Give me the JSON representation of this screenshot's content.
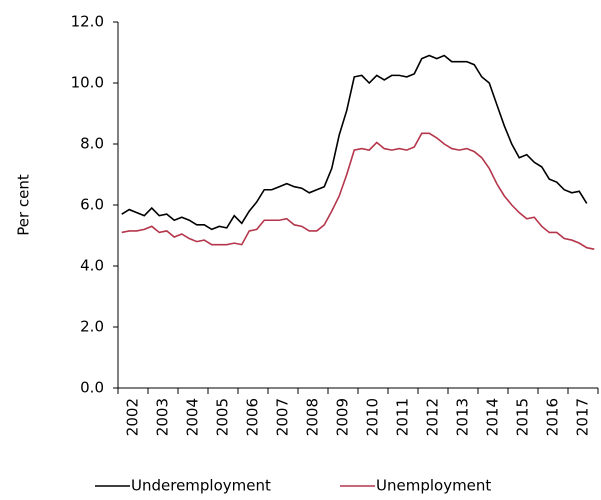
{
  "chart_data": {
    "type": "line",
    "y_label": "Per cent",
    "categories": [
      null,
      "2002",
      null,
      null,
      null,
      "2003",
      null,
      null,
      null,
      "2004",
      null,
      null,
      null,
      "2005",
      null,
      null,
      null,
      "2006",
      null,
      null,
      null,
      "2007",
      null,
      null,
      null,
      "2008",
      null,
      null,
      null,
      "2009",
      null,
      null,
      null,
      "2010",
      null,
      null,
      null,
      "2011",
      null,
      null,
      null,
      "2012",
      null,
      null,
      null,
      "2013",
      null,
      null,
      null,
      "2014",
      null,
      null,
      null,
      "2015",
      null,
      null,
      null,
      "2016",
      null,
      null,
      null,
      "2017",
      null,
      null
    ],
    "series": [
      {
        "name": "Underemployment",
        "color": "#000000",
        "values": [
          5.7,
          5.85,
          5.75,
          5.65,
          5.9,
          5.65,
          5.7,
          5.5,
          5.6,
          5.5,
          5.35,
          5.35,
          5.2,
          5.3,
          5.25,
          5.65,
          5.4,
          5.8,
          6.1,
          6.5,
          6.5,
          6.6,
          6.7,
          6.6,
          6.55,
          6.4,
          6.5,
          6.6,
          7.2,
          8.3,
          9.1,
          10.2,
          10.25,
          10.0,
          10.25,
          10.1,
          10.25,
          10.25,
          10.2,
          10.3,
          10.8,
          10.9,
          10.8,
          10.9,
          10.7,
          10.7,
          10.7,
          10.6,
          10.2,
          10.0,
          9.3,
          8.6,
          8.0,
          7.55,
          7.65,
          7.4,
          7.25,
          6.85,
          6.75,
          6.5,
          6.4,
          6.45,
          6.05,
          null
        ]
      },
      {
        "name": "Unemployment",
        "color": "#b5364b",
        "values": [
          5.1,
          5.15,
          5.15,
          5.2,
          5.3,
          5.1,
          5.15,
          4.95,
          5.05,
          4.9,
          4.8,
          4.85,
          4.7,
          4.7,
          4.7,
          4.75,
          4.7,
          5.15,
          5.2,
          5.5,
          5.5,
          5.5,
          5.55,
          5.35,
          5.3,
          5.15,
          5.15,
          5.35,
          5.8,
          6.3,
          7.0,
          7.8,
          7.85,
          7.8,
          8.05,
          7.85,
          7.8,
          7.85,
          7.8,
          7.9,
          8.35,
          8.35,
          8.2,
          8.0,
          7.85,
          7.8,
          7.85,
          7.75,
          7.55,
          7.2,
          6.7,
          6.3,
          6.0,
          5.75,
          5.55,
          5.6,
          5.3,
          5.1,
          5.1,
          4.9,
          4.85,
          4.75,
          4.6,
          4.55
        ]
      }
    ],
    "ylim": [
      0,
      12
    ],
    "yticks": [
      {
        "value": 0,
        "label": "0.0"
      },
      {
        "value": 2,
        "label": "2.0"
      },
      {
        "value": 4,
        "label": "4.0"
      },
      {
        "value": 6,
        "label": "6.0"
      },
      {
        "value": 8,
        "label": "8.0"
      },
      {
        "value": 10,
        "label": "10.0"
      },
      {
        "value": 12,
        "label": "12.0"
      }
    ],
    "grid": false,
    "legend": "bottom"
  }
}
